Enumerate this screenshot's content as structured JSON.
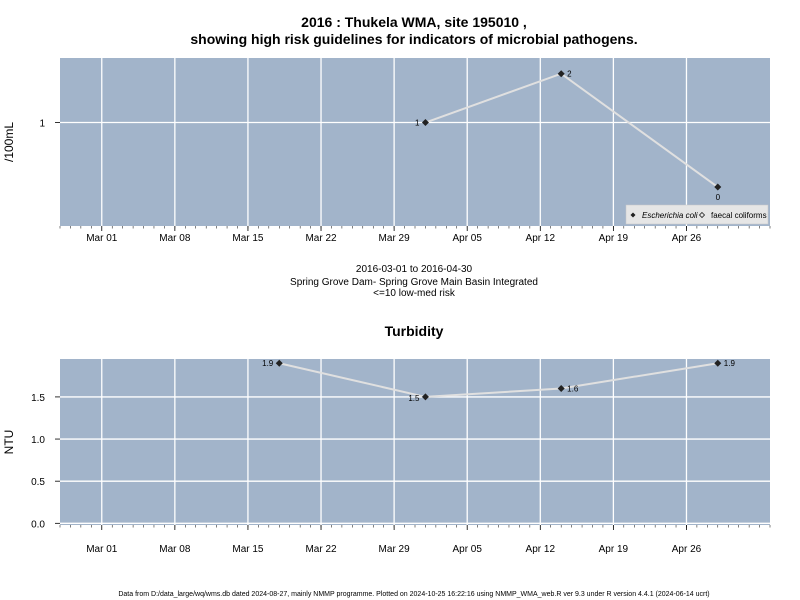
{
  "chart_data": [
    {
      "type": "line",
      "title": "2016 : Thukela WMA, site 195010 ,",
      "title2": "showing high risk guidelines for indicators of microbial pathogens.",
      "ylabel": "/100mL",
      "log_scale_y": true,
      "y_ticks": [
        {
          "value": 1,
          "label": "1"
        }
      ],
      "x_ticks": [
        "Mar 01",
        "Mar 08",
        "Mar 15",
        "Mar 22",
        "Mar 29",
        "Apr 05",
        "Apr 12",
        "Apr 19",
        "Apr 26"
      ],
      "xlim": [
        "2016-02-26",
        "2016-05-04"
      ],
      "grid": true,
      "background_color": "#a2b4ca",
      "line_color": "#e0e0e0",
      "series": [
        {
          "name": "Escherichia coli",
          "points": [
            {
              "x": "2016-04-01",
              "y": 1,
              "label": "1"
            },
            {
              "x": "2016-04-14",
              "y": 2,
              "label": "2"
            },
            {
              "x": "2016-04-29",
              "y": 0,
              "label": "0"
            }
          ]
        }
      ],
      "legend": {
        "placement": "bottom-right",
        "entries": [
          {
            "label": "Escherichia coli",
            "marker": "filled-diamond"
          },
          {
            "label": "faecal coliforms",
            "marker": "open-diamond"
          }
        ]
      }
    },
    {
      "type": "line",
      "title": "Turbidity",
      "ylabel": "NTU",
      "ylim": [
        -0.02,
        1.95
      ],
      "y_ticks": [
        {
          "value": 0,
          "label": "0.0"
        },
        {
          "value": 0.5,
          "label": "0.5"
        },
        {
          "value": 1.0,
          "label": "1.0"
        },
        {
          "value": 1.5,
          "label": "1.5"
        }
      ],
      "x_ticks": [
        "Mar 01",
        "Mar 08",
        "Mar 15",
        "Mar 22",
        "Mar 29",
        "Apr 05",
        "Apr 12",
        "Apr 19",
        "Apr 26"
      ],
      "xlim": [
        "2016-02-26",
        "2016-05-04"
      ],
      "grid": true,
      "background_color": "#a2b4ca",
      "line_color": "#e0e0e0",
      "series": [
        {
          "points": [
            {
              "x": "2016-03-18",
              "y": 1.9,
              "label": "1.9"
            },
            {
              "x": "2016-04-01",
              "y": 1.5,
              "label": "1.5"
            },
            {
              "x": "2016-04-14",
              "y": 1.6,
              "label": "1.6"
            },
            {
              "x": "2016-04-29",
              "y": 1.9,
              "label": "1.9"
            }
          ]
        }
      ]
    }
  ],
  "mid_text": {
    "line1": "2016-03-01 to 2016-04-30",
    "line2": "Spring Grove Dam- Spring Grove Main Basin Integrated",
    "line3": "<=10 low-med risk"
  },
  "footer": "Data from D:/data_large/wq/wms.db dated 2024-08-27, mainly NMMP programme. Plotted on 2024-10-25 16:22:16 using NMMP_WMA_web.R ver 9.3 under R version 4.4.1 (2024-06-14 ucrt)"
}
